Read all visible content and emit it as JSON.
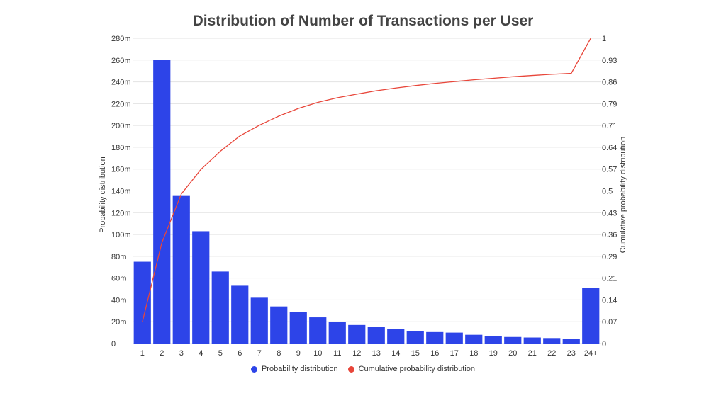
{
  "chart_data": {
    "type": "bar",
    "title": "Distribution of Number of Transactions per User",
    "categories": [
      "1",
      "2",
      "3",
      "4",
      "5",
      "6",
      "7",
      "8",
      "9",
      "10",
      "11",
      "12",
      "13",
      "14",
      "15",
      "16",
      "17",
      "18",
      "19",
      "20",
      "21",
      "22",
      "23",
      "24+"
    ],
    "series": [
      {
        "name": "Probability distribution",
        "type": "bar",
        "axis": "left",
        "color": "#2d44e8",
        "values": [
          75,
          260,
          136,
          103,
          66,
          53,
          42,
          34,
          29,
          24,
          20,
          17,
          15,
          13,
          11.5,
          10.5,
          10,
          8,
          7,
          6,
          5.5,
          5,
          4.5,
          51
        ]
      },
      {
        "name": "Cumulative probability distribution",
        "type": "line",
        "axis": "right",
        "color": "#e8463a",
        "values": [
          0.07,
          0.33,
          0.49,
          0.57,
          0.63,
          0.68,
          0.715,
          0.745,
          0.77,
          0.79,
          0.805,
          0.817,
          0.828,
          0.837,
          0.845,
          0.852,
          0.858,
          0.864,
          0.869,
          0.874,
          0.878,
          0.882,
          0.885,
          1.0
        ]
      }
    ],
    "ylabel": "Probability distribution",
    "y2label": "Cumulative probability distribution",
    "ylim": [
      0,
      280
    ],
    "y2lim": [
      0,
      1
    ],
    "yticks": [
      "0",
      "20m",
      "40m",
      "60m",
      "80m",
      "100m",
      "120m",
      "140m",
      "160m",
      "180m",
      "200m",
      "220m",
      "240m",
      "260m",
      "280m"
    ],
    "y2ticks": [
      "0",
      "0.07",
      "0.14",
      "0.21",
      "0.29",
      "0.36",
      "0.43",
      "0.5",
      "0.57",
      "0.64",
      "0.71",
      "0.79",
      "0.86",
      "0.93",
      "1"
    ],
    "grid": true,
    "legend_position": "bottom"
  },
  "legend": {
    "bar_label": "Probability distribution",
    "line_label": "Cumulative probability distribution"
  }
}
